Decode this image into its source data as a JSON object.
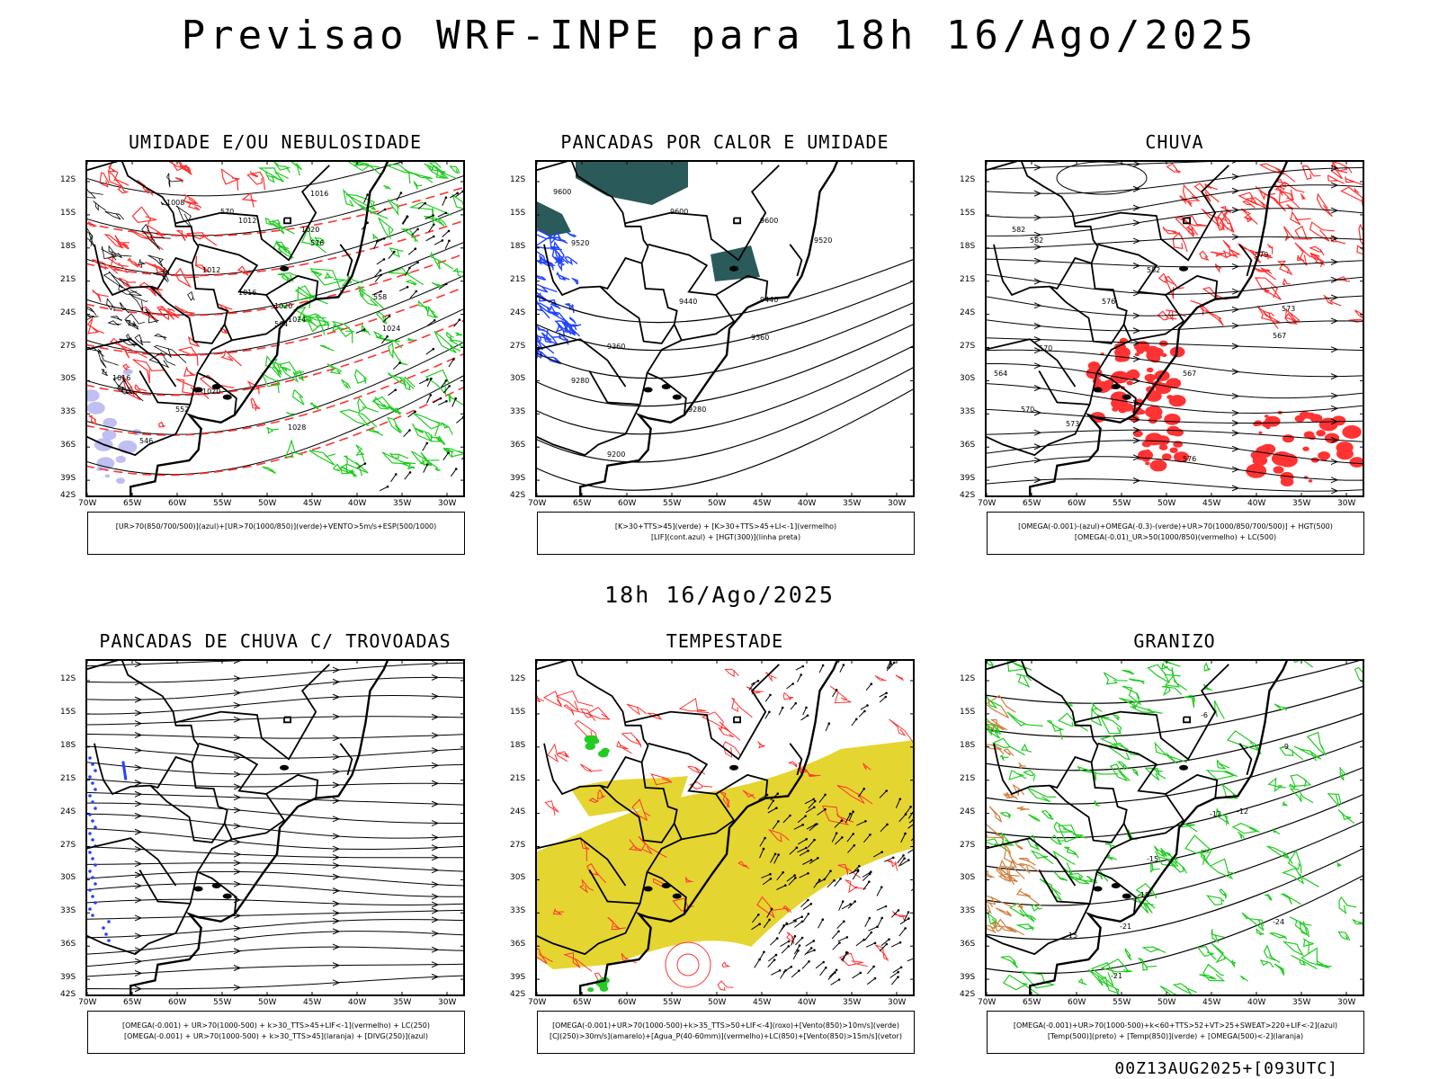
{
  "header": {
    "title": "Previsao WRF-INPE  para 18h 16/Ago/2025"
  },
  "mid_title": "18h 16/Ago/2025",
  "footer": "00Z13AUG2025+[093UTC]",
  "axes": {
    "lat_labels": [
      "12S",
      "15S",
      "18S",
      "21S",
      "24S",
      "27S",
      "30S",
      "33S",
      "36S",
      "39S",
      "42S"
    ],
    "lon_labels": [
      "70W",
      "65W",
      "60W",
      "55W",
      "50W",
      "45W",
      "40W",
      "35W",
      "30W"
    ]
  },
  "colors": {
    "green": "#22cc22",
    "red": "#ff3333",
    "blue": "#2244ff",
    "lavender": "#b8b8f0",
    "dark_teal": "#2a5a5a",
    "yellow": "#e5d530",
    "orange": "#d08040",
    "black": "#000000"
  },
  "panels": [
    {
      "id": "umidade",
      "title": "UMIDADE E/OU NEBULOSIDADE",
      "legend": [
        "[UR>70(850/700/500)](azul)+[UR>70(1000/850)](verde)+VENTO>5m/s+ESP(500/1000)"
      ],
      "contour_labels": [
        "1008",
        "1016",
        "1012",
        "1020",
        "1012",
        "1016",
        "1020",
        "1024",
        "1024",
        "1016",
        "1020",
        "1028",
        "570",
        "576",
        "564",
        "558",
        "552",
        "546"
      ]
    },
    {
      "id": "pancadas-calor",
      "title": "PANCADAS POR CALOR E UMIDADE",
      "legend": [
        "[K>30+TTS>45](verde) + [K>30+TTS>45+LI<-1](vermelho)",
        "[LIF](cont.azul) + [HGT(300)](linha preta)"
      ],
      "contour_labels": [
        "9600",
        "9600",
        "9600",
        "9520",
        "9520",
        "9440",
        "9440",
        "9360",
        "9360",
        "9280",
        "9280",
        "9200"
      ]
    },
    {
      "id": "chuva",
      "title": "CHUVA",
      "legend": [
        "[OMEGA(-0.001)-(azul)+OMEGA(-0.3)-(verde)+UR>70(1000/850/700/500)] + HGT(500)",
        "[OMEGA(-0.01)_UR>50(1000/850)(vermelho) + LC(500)"
      ],
      "contour_labels": [
        "582",
        "582",
        "582",
        "579",
        "576",
        "573",
        "570",
        "567",
        "564",
        "567",
        "570",
        "573",
        "576"
      ]
    },
    {
      "id": "pancadas-trovoadas",
      "title": "PANCADAS DE CHUVA C/ TROVOADAS",
      "legend": [
        "[OMEGA(-0.001) + UR>70(1000-500) + k>30_TTS>45+LIF<-1](vermelho) + LC(250)",
        "[OMEGA(-0.001) + UR>70(1000-500) + k>30_TTS>45](laranja) + [DIVG(250)](azul)"
      ],
      "contour_labels": []
    },
    {
      "id": "tempestade",
      "title": "TEMPESTADE",
      "legend": [
        "[OMEGA(-0.001)+UR>70(1000-500)+k>35_TTS>50+LIF<-4](roxo)+[Vento(850)>10m/s](verde)",
        "[CJ(250)>30m/s](amarelo)+[Agua_P(40-60mm)](vermelho)+LC(850)+[Vento(850)>15m/s](vetor)"
      ],
      "contour_labels": []
    },
    {
      "id": "granizo",
      "title": "GRANIZO",
      "legend": [
        "[OMEGA(-0.001)+UR>70(1000-500)+k<60+TTS>52+VT>25+SWEAT>220+LIF<-2](azul)",
        "[Temp(500)](preto) + [Temp(850)](verde) + [OMEGA(500)<-2](laranja)"
      ],
      "contour_labels": [
        "-6",
        "-9",
        "-12",
        "-12",
        "-15",
        "-18",
        "-21",
        "-21",
        "-24",
        "-15"
      ]
    }
  ]
}
